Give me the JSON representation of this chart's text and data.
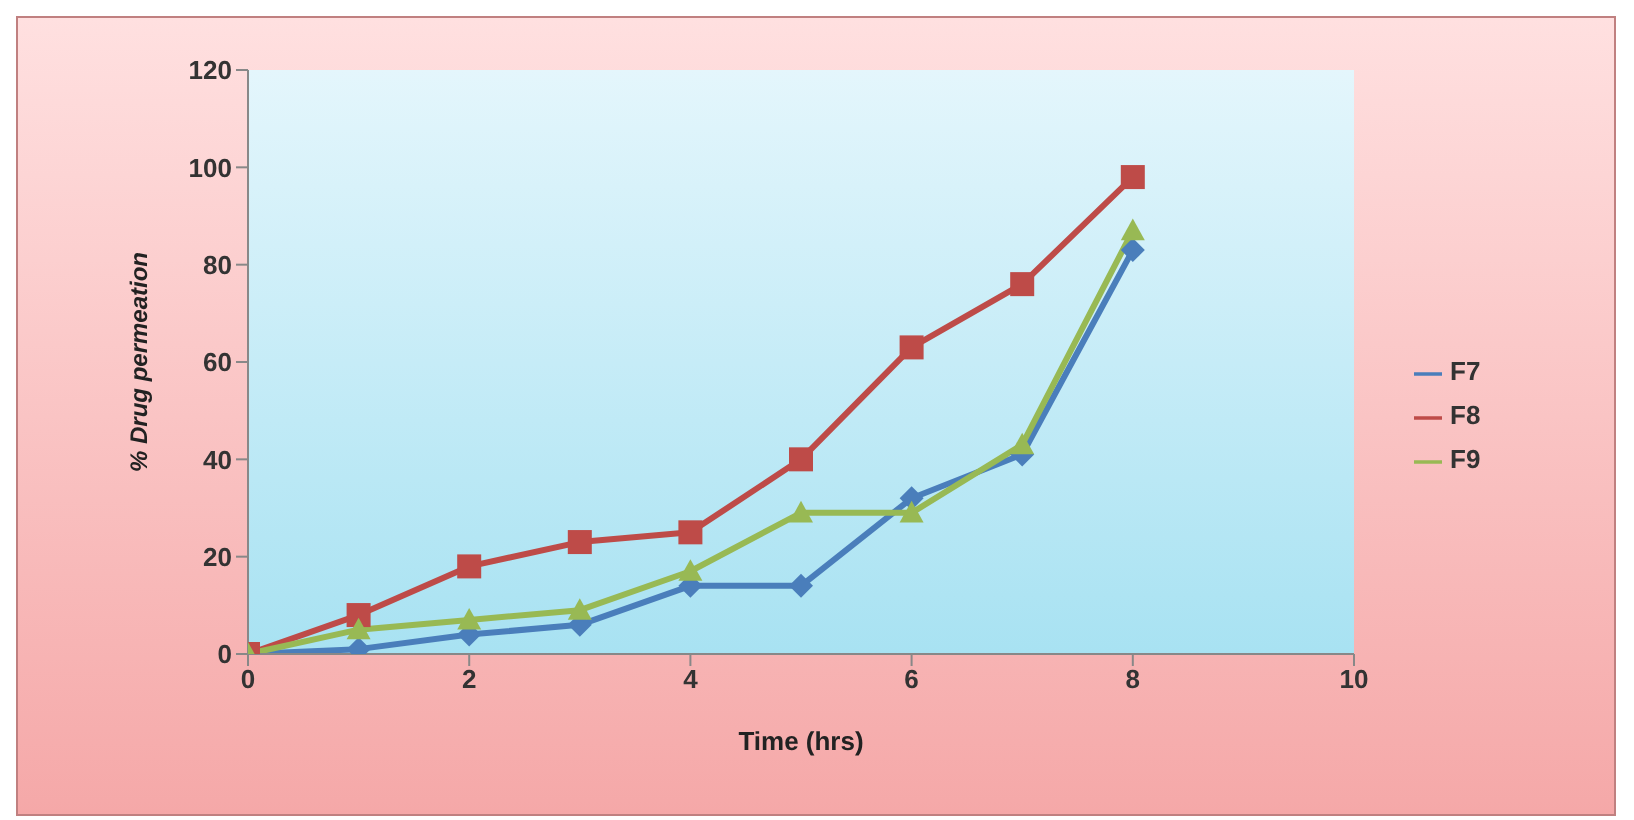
{
  "chart_data": {
    "type": "line",
    "xlabel": "Time (hrs)",
    "ylabel": "% Drug permeation",
    "x": [
      0,
      1,
      2,
      3,
      4,
      5,
      6,
      7,
      8
    ],
    "xlim": [
      0,
      10
    ],
    "xticks": [
      0,
      2,
      4,
      6,
      8,
      10
    ],
    "ylim": [
      0,
      120
    ],
    "yticks": [
      0,
      20,
      40,
      60,
      80,
      100,
      120
    ],
    "grid": false,
    "legend": "right",
    "line_style": "solid",
    "series": [
      {
        "name": "F7",
        "color": "#4a7ebb",
        "marker": "diamond",
        "values": [
          0,
          1,
          4,
          6,
          14,
          14,
          32,
          41,
          83
        ]
      },
      {
        "name": "F8",
        "color": "#be4b48",
        "marker": "square",
        "values": [
          0,
          8,
          18,
          23,
          25,
          40,
          63,
          76,
          98
        ]
      },
      {
        "name": "F9",
        "color": "#98b954",
        "marker": "triangle",
        "values": [
          0,
          5,
          7,
          9,
          17,
          29,
          29,
          43,
          87
        ]
      }
    ]
  }
}
